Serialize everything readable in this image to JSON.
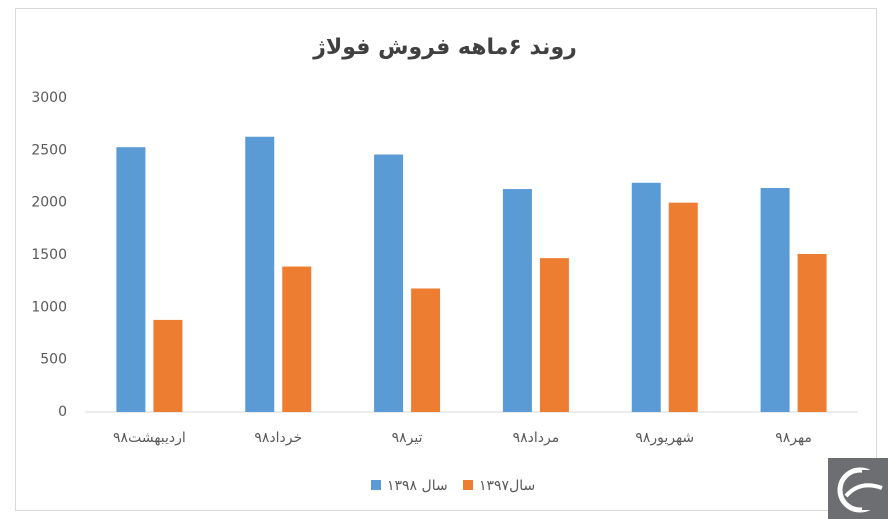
{
  "chart_data": {
    "type": "bar",
    "title": "روند ۶ماهه فروش فولاژ",
    "categories": [
      "اردیبهشت۹۸",
      "خرداد۹۸",
      "تیر۹۸",
      "مرداد۹۸",
      "شهریور۹۸",
      "مهر۹۸"
    ],
    "series": [
      {
        "name": "سال ۱۳۹۸",
        "color": "#5b9bd5",
        "values": [
          2530,
          2630,
          2460,
          2130,
          2190,
          2140
        ]
      },
      {
        "name": "سال۱۳۹۷",
        "color": "#ed7d31",
        "values": [
          880,
          1390,
          1180,
          1470,
          2000,
          1510
        ]
      }
    ],
    "ylim": [
      0,
      3000
    ],
    "yticks": [
      0,
      500,
      1000,
      1500,
      2000,
      2500,
      3000
    ],
    "grid": false,
    "legend": "bottom"
  }
}
